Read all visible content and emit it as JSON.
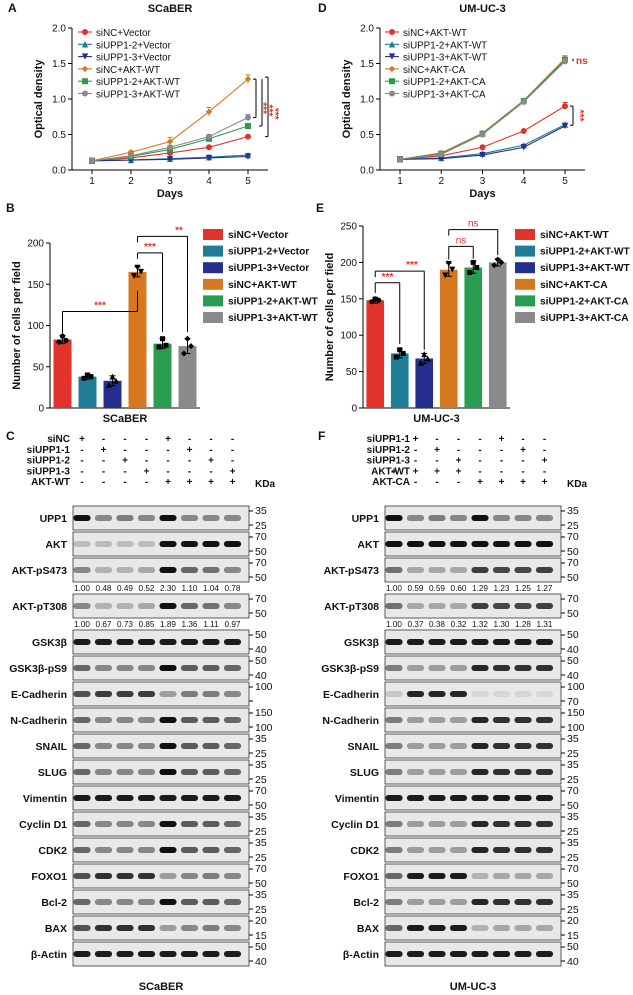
{
  "colors": {
    "siNC_vector": "#e2332a",
    "siUPP1_2_vector": "#1f7d95",
    "siUPP1_3_vector": "#242f8e",
    "siNC_akt": "#d6781f",
    "siUPP1_2_akt": "#2a9c52",
    "siUPP1_3_akt": "#8a8a8a"
  },
  "panels": {
    "A": {
      "letter": "A",
      "title": "SCaBER",
      "ylabel": "Optical density",
      "xlabel": "Days",
      "yticks": [
        "0.0",
        "0.5",
        "1.0",
        "1.5",
        "2.0"
      ],
      "xticks": [
        "1",
        "2",
        "3",
        "4",
        "5"
      ],
      "sig": [
        "***",
        "***",
        "***"
      ]
    },
    "D": {
      "letter": "D",
      "title": "UM-UC-3",
      "ylabel": "Optical density",
      "xlabel": "Days",
      "yticks": [
        "0.0",
        "0.5",
        "1.0",
        "1.5",
        "2.0"
      ],
      "xticks": [
        "1",
        "2",
        "3",
        "4",
        "5"
      ],
      "sig": [
        "ns",
        "***"
      ]
    },
    "B": {
      "letter": "B",
      "xlabel": "SCaBER",
      "ylabel": "Number of cells per field",
      "yticks": [
        "0",
        "50",
        "100",
        "150",
        "200"
      ],
      "sig": [
        "***",
        "***",
        "**"
      ]
    },
    "E": {
      "letter": "E",
      "xlabel": "UM-UC-3",
      "ylabel": "Number of cells per field",
      "yticks": [
        "0",
        "50",
        "100",
        "150",
        "200",
        "250"
      ],
      "sig": [
        "***",
        "***",
        "ns",
        "ns"
      ]
    },
    "C": {
      "letter": "C",
      "footer": "SCaBER",
      "kda": "KDa",
      "treat_labels": [
        "siNC",
        "siUPP1-1",
        "siUPP1-2",
        "siUPP1-3",
        "AKT-WT"
      ],
      "treat_marks": [
        [
          "+",
          "-",
          "-",
          "-",
          "+",
          "-",
          "-",
          "-"
        ],
        [
          "-",
          "+",
          "-",
          "-",
          "-",
          "+",
          "-",
          "-"
        ],
        [
          "-",
          "-",
          "+",
          "-",
          "-",
          "-",
          "+",
          "-"
        ],
        [
          "-",
          "-",
          "-",
          "+",
          "-",
          "-",
          "-",
          "+"
        ],
        [
          "-",
          "-",
          "-",
          "-",
          "+",
          "+",
          "+",
          "+"
        ]
      ],
      "blots": [
        {
          "label": "UPP1",
          "mw": [
            "35",
            "25"
          ]
        },
        {
          "label": "AKT",
          "mw": [
            "70",
            "50"
          ]
        },
        {
          "label": "AKT-pS473",
          "mw": [
            "70",
            "50"
          ],
          "quant": [
            "1.00",
            "0.48",
            "0.49",
            "0.52",
            "2.30",
            "1.10",
            "1.04",
            "0.78"
          ]
        },
        {
          "label": "AKT-pT308",
          "mw": [
            "70",
            "50"
          ],
          "quant": [
            "1.00",
            "0.67",
            "0.73",
            "0.85",
            "1.89",
            "1.36",
            "1.11",
            "0.97"
          ]
        },
        {
          "label": "GSK3β",
          "mw": [
            "50",
            "40"
          ]
        },
        {
          "label": "GSK3β-pS9",
          "mw": [
            "50",
            "40"
          ]
        },
        {
          "label": "E-Cadherin",
          "mw": [
            "100",
            ""
          ]
        },
        {
          "label": "N-Cadherin",
          "mw": [
            "150",
            "100"
          ]
        },
        {
          "label": "SNAIL",
          "mw": [
            "35",
            "25"
          ]
        },
        {
          "label": "SLUG",
          "mw": [
            "35",
            "25"
          ]
        },
        {
          "label": "Vimentin",
          "mw": [
            "70",
            "50"
          ]
        },
        {
          "label": "Cyclin D1",
          "mw": [
            "35",
            "25"
          ]
        },
        {
          "label": "CDK2",
          "mw": [
            "35",
            "25"
          ]
        },
        {
          "label": "FOXO1",
          "mw": [
            "70",
            "50"
          ]
        },
        {
          "label": "Bcl-2",
          "mw": [
            "35",
            "25"
          ]
        },
        {
          "label": "BAX",
          "mw": [
            "20",
            "15"
          ]
        },
        {
          "label": "β-Actin",
          "mw": [
            "50",
            "40"
          ]
        }
      ]
    },
    "F": {
      "letter": "F",
      "footer": "UM-UC-3",
      "kda": "KDa",
      "treat_labels": [
        "siUPP1-1",
        "siUPP1-2",
        "siUPP1-3",
        "AKT-WT",
        "AKT-CA"
      ],
      "treat_marks": [
        [
          "-",
          "+",
          "-",
          "-",
          "-",
          "+",
          "-",
          "-"
        ],
        [
          "-",
          "-",
          "+",
          "-",
          "-",
          "-",
          "+",
          "-"
        ],
        [
          "-",
          "-",
          "-",
          "+",
          "-",
          "-",
          "-",
          "+"
        ],
        [
          "+",
          "+",
          "+",
          "+",
          "-",
          "-",
          "-",
          "-"
        ],
        [
          "-",
          "-",
          "-",
          "-",
          "+",
          "+",
          "+",
          "+"
        ]
      ],
      "blots": [
        {
          "label": "UPP1",
          "mw": [
            "35",
            "25"
          ]
        },
        {
          "label": "AKT",
          "mw": [
            "70",
            "50"
          ]
        },
        {
          "label": "AKT-pS473",
          "mw": [
            "70",
            "50"
          ],
          "quant": [
            "1.00",
            "0.59",
            "0.59",
            "0.60",
            "1.29",
            "1.23",
            "1.25",
            "1.27"
          ]
        },
        {
          "label": "AKT-pT308",
          "mw": [
            "70",
            "50"
          ],
          "quant": [
            "1.00",
            "0.37",
            "0.38",
            "0.32",
            "1.32",
            "1.30",
            "1.28",
            "1.31"
          ]
        },
        {
          "label": "GSK3β",
          "mw": [
            "50",
            "40"
          ]
        },
        {
          "label": "GSK3β-pS9",
          "mw": [
            "50",
            "40"
          ]
        },
        {
          "label": "E-Cadherin",
          "mw": [
            "100",
            "70"
          ]
        },
        {
          "label": "N-Cadherin",
          "mw": [
            "150",
            "100"
          ]
        },
        {
          "label": "SNAIL",
          "mw": [
            "35",
            "25"
          ]
        },
        {
          "label": "SLUG",
          "mw": [
            "35",
            "25"
          ]
        },
        {
          "label": "Vimentin",
          "mw": [
            "70",
            "50"
          ]
        },
        {
          "label": "Cyclin D1",
          "mw": [
            "35",
            "25"
          ]
        },
        {
          "label": "CDK2",
          "mw": [
            "35",
            "25"
          ]
        },
        {
          "label": "FOXO1",
          "mw": [
            "70",
            "50"
          ]
        },
        {
          "label": "Bcl-2",
          "mw": [
            "35",
            "25"
          ]
        },
        {
          "label": "BAX",
          "mw": [
            "20",
            "15"
          ]
        },
        {
          "label": "β-Actin",
          "mw": [
            "50",
            "40"
          ]
        }
      ]
    }
  },
  "chart_data": [
    {
      "type": "line",
      "panel": "A",
      "title": "SCaBER",
      "xlabel": "Days",
      "ylabel": "Optical density",
      "x": [
        1,
        2,
        3,
        4,
        5
      ],
      "ylim": [
        0,
        2.0
      ],
      "series": [
        {
          "name": "siNC+Vector",
          "color_key": "siNC_vector",
          "values": [
            0.13,
            0.17,
            0.24,
            0.32,
            0.47
          ],
          "err": [
            0.01,
            0.01,
            0.01,
            0.01,
            0.01
          ]
        },
        {
          "name": "siUPP1-2+Vector",
          "color_key": "siUPP1_2_vector",
          "values": [
            0.13,
            0.14,
            0.16,
            0.18,
            0.21
          ],
          "err": [
            0.01,
            0.01,
            0.01,
            0.01,
            0.01
          ]
        },
        {
          "name": "siUPP1-3+Vector",
          "color_key": "siUPP1_3_vector",
          "values": [
            0.13,
            0.14,
            0.15,
            0.17,
            0.19
          ],
          "err": [
            0.01,
            0.01,
            0.01,
            0.01,
            0.01
          ]
        },
        {
          "name": "siNC+AKT-WT",
          "color_key": "siNC_akt",
          "values": [
            0.13,
            0.25,
            0.4,
            0.82,
            1.28
          ],
          "err": [
            0.01,
            0.02,
            0.06,
            0.06,
            0.06
          ]
        },
        {
          "name": "siUPP1-2+AKT-WT",
          "color_key": "siUPP1_2_akt",
          "values": [
            0.13,
            0.19,
            0.29,
            0.44,
            0.62
          ],
          "err": [
            0.01,
            0.01,
            0.02,
            0.03,
            0.02
          ]
        },
        {
          "name": "siUPP1-3+AKT-WT",
          "color_key": "siUPP1_3_akt",
          "values": [
            0.13,
            0.2,
            0.32,
            0.47,
            0.74
          ],
          "err": [
            0.01,
            0.01,
            0.02,
            0.03,
            0.04
          ]
        }
      ]
    },
    {
      "type": "line",
      "panel": "D",
      "title": "UM-UC-3",
      "xlabel": "Days",
      "ylabel": "Optical density",
      "x": [
        1,
        2,
        3,
        4,
        5
      ],
      "ylim": [
        0,
        2.0
      ],
      "series": [
        {
          "name": "siNC+AKT-WT",
          "color_key": "siNC_vector",
          "values": [
            0.15,
            0.2,
            0.32,
            0.55,
            0.9
          ],
          "err": [
            0.01,
            0.01,
            0.01,
            0.01,
            0.05
          ]
        },
        {
          "name": "siUPP1-2+AKT-WT",
          "color_key": "siUPP1_2_vector",
          "values": [
            0.15,
            0.17,
            0.23,
            0.35,
            0.64
          ],
          "err": [
            0.01,
            0.01,
            0.01,
            0.01,
            0.02
          ]
        },
        {
          "name": "siUPP1-3+AKT-WT",
          "color_key": "siUPP1_3_vector",
          "values": [
            0.15,
            0.16,
            0.21,
            0.32,
            0.62
          ],
          "err": [
            0.01,
            0.01,
            0.01,
            0.01,
            0.02
          ]
        },
        {
          "name": "siNC+AKT-CA",
          "color_key": "siNC_akt",
          "values": [
            0.15,
            0.24,
            0.52,
            0.98,
            1.57
          ],
          "err": [
            0.01,
            0.01,
            0.02,
            0.02,
            0.04
          ]
        },
        {
          "name": "siUPP1-2+AKT-CA",
          "color_key": "siUPP1_2_akt",
          "values": [
            0.15,
            0.23,
            0.51,
            0.97,
            1.55
          ],
          "err": [
            0.01,
            0.01,
            0.02,
            0.02,
            0.04
          ]
        },
        {
          "name": "siUPP1-3+AKT-CA",
          "color_key": "siUPP1_3_akt",
          "values": [
            0.15,
            0.22,
            0.5,
            0.96,
            1.53
          ],
          "err": [
            0.01,
            0.01,
            0.02,
            0.02,
            0.04
          ]
        }
      ]
    },
    {
      "type": "bar",
      "panel": "B",
      "xlabel": "SCaBER",
      "ylabel": "Number of cells per field",
      "ylim": [
        0,
        200
      ],
      "categories": [
        "siNC+Vector",
        "siUPP1-2+Vector",
        "siUPP1-3+Vector",
        "siNC+AKT-WT",
        "siUPP1-2+AKT-WT",
        "siUPP1-3+AKT-WT"
      ],
      "color_keys": [
        "siNC_vector",
        "siUPP1_2_vector",
        "siUPP1_3_vector",
        "siNC_akt",
        "siUPP1_2_akt",
        "siUPP1_3_akt"
      ],
      "values": [
        83,
        38,
        33,
        165,
        78,
        75
      ],
      "err": [
        5,
        3,
        6,
        6,
        6,
        9
      ],
      "points": [
        [
          80,
          87,
          82
        ],
        [
          36,
          40,
          38
        ],
        [
          28,
          38,
          33
        ],
        [
          160,
          170,
          165
        ],
        [
          74,
          84,
          76
        ],
        [
          66,
          84,
          75
        ]
      ],
      "sig": [
        [
          "siNC+Vector",
          "siNC+AKT-WT",
          "***"
        ],
        [
          "siNC+AKT-WT",
          "siUPP1-2+AKT-WT",
          "***"
        ],
        [
          "siNC+AKT-WT",
          "siUPP1-3+AKT-WT",
          "**"
        ]
      ]
    },
    {
      "type": "bar",
      "panel": "E",
      "xlabel": "UM-UC-3",
      "ylabel": "Number of cells per field",
      "ylim": [
        0,
        250
      ],
      "categories": [
        "siNC+AKT-WT",
        "siUPP1-2+AKT-WT",
        "siUPP1-3+AKT-WT",
        "siNC+AKT-CA",
        "siUPP1-2+AKT-CA",
        "siUPP1-3+AKT-CA"
      ],
      "color_keys": [
        "siNC_vector",
        "siUPP1_2_vector",
        "siUPP1_3_vector",
        "siNC_akt",
        "siUPP1_2_akt",
        "siUPP1_3_akt"
      ],
      "values": [
        148,
        75,
        68,
        190,
        193,
        200
      ],
      "err": [
        4,
        6,
        7,
        9,
        8,
        5
      ],
      "points": [
        [
          146,
          150,
          148
        ],
        [
          70,
          80,
          75
        ],
        [
          62,
          74,
          68
        ],
        [
          182,
          198,
          190
        ],
        [
          186,
          200,
          193
        ],
        [
          196,
          204,
          200
        ]
      ],
      "sig": [
        [
          "siNC+AKT-WT",
          "siUPP1-2+AKT-WT",
          "***"
        ],
        [
          "siNC+AKT-WT",
          "siUPP1-3+AKT-WT",
          "***"
        ],
        [
          "siNC+AKT-CA",
          "siUPP1-2+AKT-CA",
          "ns"
        ],
        [
          "siNC+AKT-CA",
          "siUPP1-3+AKT-CA",
          "ns"
        ]
      ]
    }
  ]
}
